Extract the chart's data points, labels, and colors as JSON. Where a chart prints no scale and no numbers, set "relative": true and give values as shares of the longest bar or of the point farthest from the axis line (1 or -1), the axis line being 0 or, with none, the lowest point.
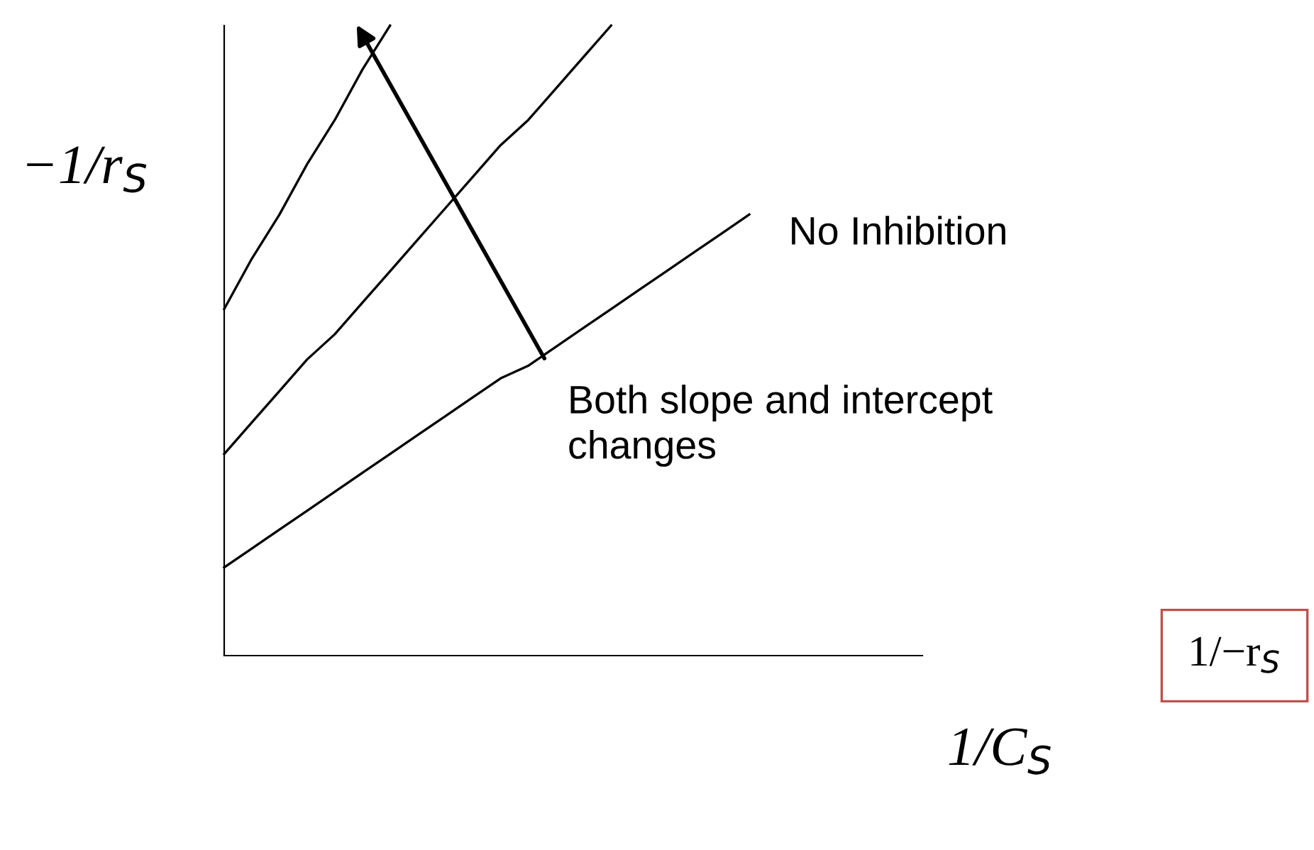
{
  "chart_data": {
    "type": "line",
    "relative": true,
    "marker": "none",
    "line_style": "solid",
    "ylabel": "−1/r$_{S}$",
    "xlabel": "1/C$_{S}$",
    "categories": [
      null,
      null,
      null,
      null,
      null,
      null,
      null,
      null,
      null,
      null,
      null,
      null,
      null,
      null,
      null,
      null,
      null,
      null,
      null,
      null,
      null,
      null,
      null,
      null,
      null
    ],
    "series": [
      {
        "color": "#000000",
        "values": [
          0.14,
          0.17,
          0.2,
          0.23,
          0.26,
          0.29,
          0.32,
          0.35,
          0.38,
          0.41,
          0.44,
          0.46,
          0.49,
          0.52,
          0.55,
          0.58,
          0.61,
          0.64,
          0.67,
          0.7,
          null,
          null,
          null,
          null,
          null
        ]
      },
      {
        "color": "#000000",
        "values": [
          0.32,
          0.37,
          0.42,
          0.47,
          0.51,
          0.56,
          0.61,
          0.66,
          0.71,
          0.76,
          0.81,
          0.85,
          0.9,
          0.95,
          1.0,
          null,
          null,
          null,
          null,
          null,
          null,
          null,
          null,
          null,
          null
        ]
      },
      {
        "color": "#000000",
        "values": [
          0.55,
          0.63,
          0.7,
          0.78,
          0.85,
          0.93,
          1.0,
          null,
          null,
          null,
          null,
          null,
          null,
          null,
          null,
          null,
          null,
          null,
          null,
          null,
          null,
          null,
          null,
          null,
          null
        ]
      }
    ],
    "annotations": [
      "No Inhibition",
      "Both slope and intercept\nchanges",
      "1/−r$_{S}$"
    ]
  }
}
